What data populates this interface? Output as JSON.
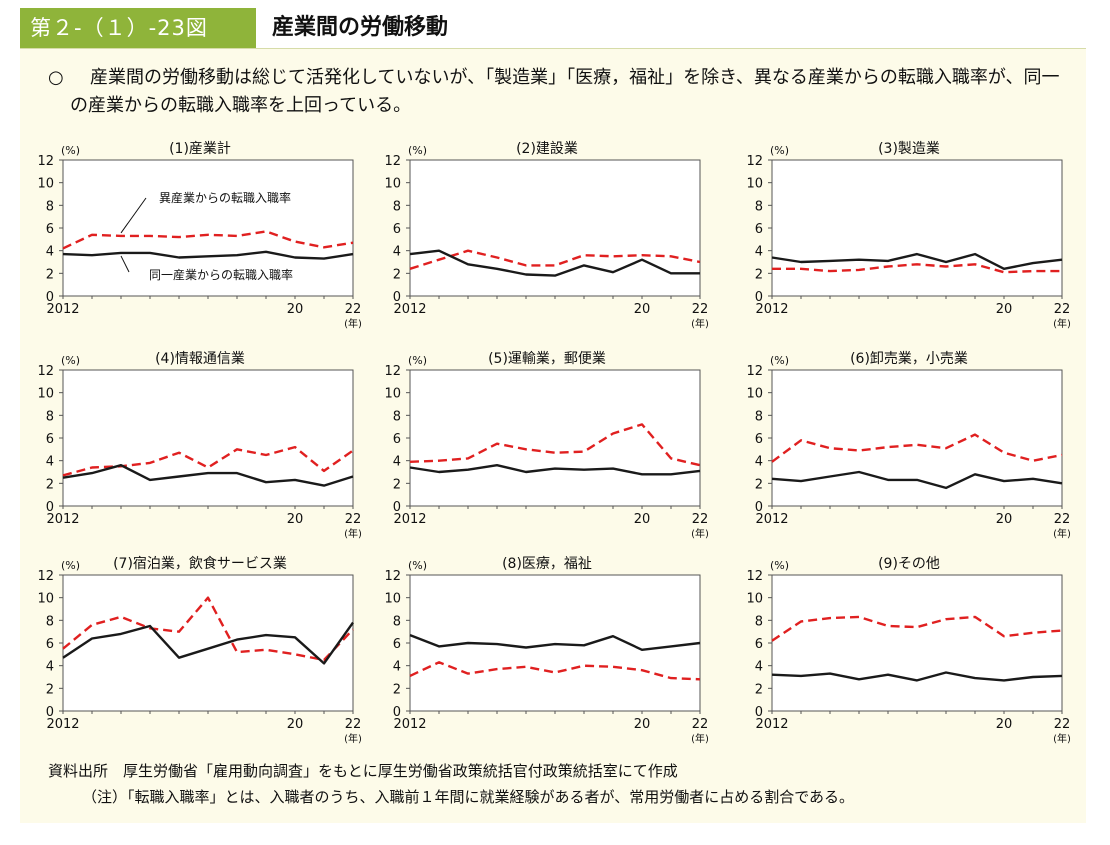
{
  "header": {
    "figure_number": "第２-（１）-23図",
    "title": "産業間の労働移動"
  },
  "summary": {
    "mark": "○",
    "text": "産業間の労働移動は総じて活発化していないが、「製造業」「医療，福祉」を除き、異なる産業からの転職入職率が、同一の産業からの転職入職率を上回っている。"
  },
  "colors": {
    "different_industry": "#e02020",
    "same_industry": "#1a1a1a",
    "accent": "#8fb43a"
  },
  "footer": {
    "source": "資料出所　厚生労働省「雇用動向調査」をもとに厚生労働省政策統括官付政策統括室にて作成",
    "note": "（注）「転職入職率」とは、入職者のうち、入職前１年間に就業経験がある者が、常用労働者に占める割合である。"
  },
  "chart_data": [
    {
      "type": "line",
      "title": "(1)産業計",
      "ylabel": "(%)",
      "xunit": "(年)",
      "ylim": [
        0,
        12
      ],
      "yticks": [
        0,
        2,
        4,
        6,
        8,
        10,
        12
      ],
      "x": [
        2012,
        2013,
        2014,
        2015,
        2016,
        2017,
        2018,
        2019,
        2020,
        2021,
        2022
      ],
      "xtick_labels": [
        {
          "x": 2012,
          "label": "2012"
        },
        {
          "x": 2020,
          "label": "20"
        },
        {
          "x": 2022,
          "label": "22"
        }
      ],
      "annotations": [
        {
          "text": "異産業からの転職入職率",
          "series": 0
        },
        {
          "text": "同一産業からの転職入職率",
          "series": 1
        }
      ],
      "series": [
        {
          "style": "dashed",
          "values": [
            4.2,
            5.4,
            5.3,
            5.3,
            5.2,
            5.4,
            5.3,
            5.7,
            4.8,
            4.3,
            4.7
          ]
        },
        {
          "style": "solid",
          "values": [
            3.7,
            3.6,
            3.8,
            3.8,
            3.4,
            3.5,
            3.6,
            3.9,
            3.4,
            3.3,
            3.7
          ]
        }
      ]
    },
    {
      "type": "line",
      "title": "(2)建設業",
      "ylabel": "(%)",
      "xunit": "(年)",
      "ylim": [
        0,
        12
      ],
      "yticks": [
        0,
        2,
        4,
        6,
        8,
        10,
        12
      ],
      "x": [
        2012,
        2013,
        2014,
        2015,
        2016,
        2017,
        2018,
        2019,
        2020,
        2021,
        2022
      ],
      "xtick_labels": [
        {
          "x": 2012,
          "label": "2012"
        },
        {
          "x": 2020,
          "label": "20"
        },
        {
          "x": 2022,
          "label": "22"
        }
      ],
      "series": [
        {
          "style": "dashed",
          "values": [
            2.4,
            3.2,
            4.0,
            3.4,
            2.7,
            2.7,
            3.6,
            3.5,
            3.6,
            3.5,
            3.0
          ]
        },
        {
          "style": "solid",
          "values": [
            3.7,
            4.0,
            2.8,
            2.4,
            1.9,
            1.8,
            2.7,
            2.1,
            3.2,
            2.0,
            2.0
          ]
        }
      ]
    },
    {
      "type": "line",
      "title": "(3)製造業",
      "ylabel": "(%)",
      "xunit": "(年)",
      "ylim": [
        0,
        12
      ],
      "yticks": [
        0,
        2,
        4,
        6,
        8,
        10,
        12
      ],
      "x": [
        2012,
        2013,
        2014,
        2015,
        2016,
        2017,
        2018,
        2019,
        2020,
        2021,
        2022
      ],
      "xtick_labels": [
        {
          "x": 2012,
          "label": "2012"
        },
        {
          "x": 2020,
          "label": "20"
        },
        {
          "x": 2022,
          "label": "22"
        }
      ],
      "series": [
        {
          "style": "dashed",
          "values": [
            2.4,
            2.4,
            2.2,
            2.3,
            2.6,
            2.8,
            2.6,
            2.8,
            2.1,
            2.2,
            2.2
          ]
        },
        {
          "style": "solid",
          "values": [
            3.4,
            3.0,
            3.1,
            3.2,
            3.1,
            3.7,
            3.0,
            3.7,
            2.4,
            2.9,
            3.2
          ]
        }
      ]
    },
    {
      "type": "line",
      "title": "(4)情報通信業",
      "ylabel": "(%)",
      "xunit": "(年)",
      "ylim": [
        0,
        12
      ],
      "yticks": [
        0,
        2,
        4,
        6,
        8,
        10,
        12
      ],
      "x": [
        2012,
        2013,
        2014,
        2015,
        2016,
        2017,
        2018,
        2019,
        2020,
        2021,
        2022
      ],
      "xtick_labels": [
        {
          "x": 2012,
          "label": "2012"
        },
        {
          "x": 2020,
          "label": "20"
        },
        {
          "x": 2022,
          "label": "22"
        }
      ],
      "series": [
        {
          "style": "dashed",
          "values": [
            2.7,
            3.4,
            3.5,
            3.8,
            4.7,
            3.4,
            5.0,
            4.5,
            5.2,
            3.1,
            4.9
          ]
        },
        {
          "style": "solid",
          "values": [
            2.5,
            2.9,
            3.6,
            2.3,
            2.6,
            2.9,
            2.9,
            2.1,
            2.3,
            1.8,
            2.6
          ]
        }
      ]
    },
    {
      "type": "line",
      "title": "(5)運輸業，郵便業",
      "ylabel": "(%)",
      "xunit": "(年)",
      "ylim": [
        0,
        12
      ],
      "yticks": [
        0,
        2,
        4,
        6,
        8,
        10,
        12
      ],
      "x": [
        2012,
        2013,
        2014,
        2015,
        2016,
        2017,
        2018,
        2019,
        2020,
        2021,
        2022
      ],
      "xtick_labels": [
        {
          "x": 2012,
          "label": "2012"
        },
        {
          "x": 2020,
          "label": "20"
        },
        {
          "x": 2022,
          "label": "22"
        }
      ],
      "series": [
        {
          "style": "dashed",
          "values": [
            3.9,
            4.0,
            4.2,
            5.5,
            5.0,
            4.7,
            4.8,
            6.4,
            7.2,
            4.2,
            3.6
          ]
        },
        {
          "style": "solid",
          "values": [
            3.4,
            3.0,
            3.2,
            3.6,
            3.0,
            3.3,
            3.2,
            3.3,
            2.8,
            2.8,
            3.1
          ]
        }
      ]
    },
    {
      "type": "line",
      "title": "(6)卸売業，小売業",
      "ylabel": "(%)",
      "xunit": "(年)",
      "ylim": [
        0,
        12
      ],
      "yticks": [
        0,
        2,
        4,
        6,
        8,
        10,
        12
      ],
      "x": [
        2012,
        2013,
        2014,
        2015,
        2016,
        2017,
        2018,
        2019,
        2020,
        2021,
        2022
      ],
      "xtick_labels": [
        {
          "x": 2012,
          "label": "2012"
        },
        {
          "x": 2020,
          "label": "20"
        },
        {
          "x": 2022,
          "label": "22"
        }
      ],
      "series": [
        {
          "style": "dashed",
          "values": [
            3.9,
            5.8,
            5.1,
            4.9,
            5.2,
            5.4,
            5.1,
            6.3,
            4.7,
            4.0,
            4.5
          ]
        },
        {
          "style": "solid",
          "values": [
            2.4,
            2.2,
            2.6,
            3.0,
            2.3,
            2.3,
            1.6,
            2.8,
            2.2,
            2.4,
            2.0
          ]
        }
      ]
    },
    {
      "type": "line",
      "title": "(7)宿泊業，飲食サービス業",
      "ylabel": "(%)",
      "xunit": "(年)",
      "ylim": [
        0,
        12
      ],
      "yticks": [
        0,
        2,
        4,
        6,
        8,
        10,
        12
      ],
      "x": [
        2012,
        2013,
        2014,
        2015,
        2016,
        2017,
        2018,
        2019,
        2020,
        2021,
        2022
      ],
      "xtick_labels": [
        {
          "x": 2012,
          "label": "2012"
        },
        {
          "x": 2020,
          "label": "20"
        },
        {
          "x": 2022,
          "label": "22"
        }
      ],
      "series": [
        {
          "style": "dashed",
          "values": [
            5.5,
            7.6,
            8.3,
            7.3,
            7.0,
            10.0,
            5.2,
            5.4,
            5.0,
            4.5,
            7.2
          ]
        },
        {
          "style": "solid",
          "values": [
            4.7,
            6.4,
            6.8,
            7.5,
            4.7,
            5.5,
            6.3,
            6.7,
            6.5,
            4.2,
            7.8
          ]
        }
      ]
    },
    {
      "type": "line",
      "title": "(8)医療，福祉",
      "ylabel": "(%)",
      "xunit": "(年)",
      "ylim": [
        0,
        12
      ],
      "yticks": [
        0,
        2,
        4,
        6,
        8,
        10,
        12
      ],
      "x": [
        2012,
        2013,
        2014,
        2015,
        2016,
        2017,
        2018,
        2019,
        2020,
        2021,
        2022
      ],
      "xtick_labels": [
        {
          "x": 2012,
          "label": "2012"
        },
        {
          "x": 2020,
          "label": "20"
        },
        {
          "x": 2022,
          "label": "22"
        }
      ],
      "series": [
        {
          "style": "dashed",
          "values": [
            3.1,
            4.3,
            3.3,
            3.7,
            3.9,
            3.4,
            4.0,
            3.9,
            3.6,
            2.9,
            2.8
          ]
        },
        {
          "style": "solid",
          "values": [
            6.7,
            5.7,
            6.0,
            5.9,
            5.6,
            5.9,
            5.8,
            6.6,
            5.4,
            5.7,
            6.0
          ]
        }
      ]
    },
    {
      "type": "line",
      "title": "(9)その他",
      "ylabel": "(%)",
      "xunit": "(年)",
      "ylim": [
        0,
        12
      ],
      "yticks": [
        0,
        2,
        4,
        6,
        8,
        10,
        12
      ],
      "x": [
        2012,
        2013,
        2014,
        2015,
        2016,
        2017,
        2018,
        2019,
        2020,
        2021,
        2022
      ],
      "xtick_labels": [
        {
          "x": 2012,
          "label": "2012"
        },
        {
          "x": 2020,
          "label": "20"
        },
        {
          "x": 2022,
          "label": "22"
        }
      ],
      "series": [
        {
          "style": "dashed",
          "values": [
            6.2,
            7.9,
            8.2,
            8.3,
            7.5,
            7.4,
            8.1,
            8.3,
            6.6,
            6.9,
            7.1
          ]
        },
        {
          "style": "solid",
          "values": [
            3.2,
            3.1,
            3.3,
            2.8,
            3.2,
            2.7,
            3.4,
            2.9,
            2.7,
            3.0,
            3.1
          ]
        }
      ]
    }
  ]
}
